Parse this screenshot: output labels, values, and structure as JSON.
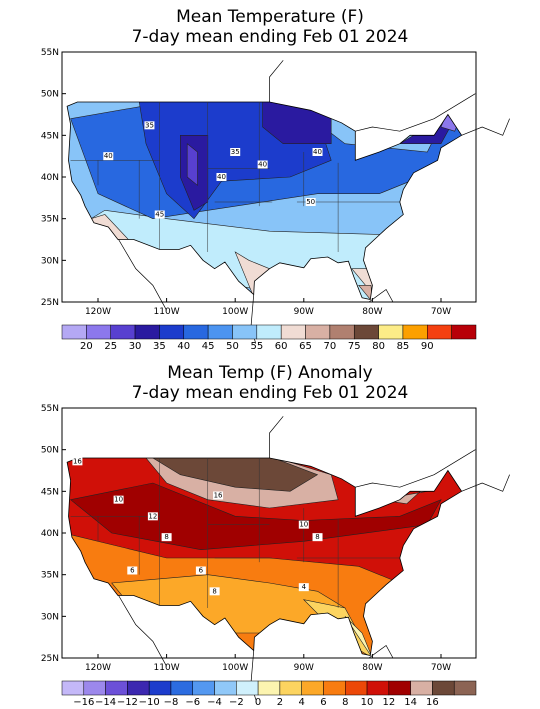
{
  "panels": [
    {
      "title": "Mean Temperature (F)",
      "subtitle": "7-day mean ending Feb 01 2024",
      "lat_labels": [
        "55N",
        "50N",
        "45N",
        "40N",
        "35N",
        "30N",
        "25N"
      ],
      "lon_labels": [
        "120W",
        "110W",
        "100W",
        "90W",
        "80W",
        "70W"
      ],
      "legend": {
        "labels": [
          "20",
          "25",
          "30",
          "35",
          "40",
          "45",
          "50",
          "55",
          "60",
          "65",
          "70",
          "75",
          "80",
          "85",
          "90"
        ],
        "colors": [
          "#b4a8f4",
          "#8c78ec",
          "#5840d0",
          "#2a1aa0",
          "#1c3ccc",
          "#2868e0",
          "#4c94f0",
          "#88c4f8",
          "#c0ecfc",
          "#f0dcd4",
          "#d8b0a4",
          "#b08070",
          "#6c4838",
          "#fcec88",
          "#fca000",
          "#f44010",
          "#b80008"
        ]
      },
      "contour_labels": [
        "35",
        "40",
        "35",
        "40",
        "40",
        "40",
        "45",
        "50"
      ]
    },
    {
      "title": "Mean Temp (F) Anomaly",
      "subtitle": "7-day mean ending Feb 01 2024",
      "lat_labels": [
        "55N",
        "50N",
        "45N",
        "40N",
        "35N",
        "30N",
        "25N"
      ],
      "lon_labels": [
        "120W",
        "110W",
        "100W",
        "90W",
        "80W",
        "70W"
      ],
      "legend": {
        "labels": [
          "−16",
          "−14",
          "−12",
          "−10",
          "−8",
          "−6",
          "−4",
          "−2",
          "0",
          "2",
          "4",
          "6",
          "8",
          "10",
          "12",
          "14",
          "16"
        ],
        "colors": [
          "#c4b8f8",
          "#9c88ec",
          "#6c50d8",
          "#3c28b0",
          "#1c3ccc",
          "#2c6ce0",
          "#5498f0",
          "#90c8f8",
          "#d0f0fc",
          "#fcf4b0",
          "#fcd460",
          "#fca828",
          "#f87c10",
          "#ec4808",
          "#d01008",
          "#a00000",
          "#d8b0a4",
          "#6c4838",
          "#8c6454"
        ]
      },
      "contour_labels": [
        "16",
        "10",
        "16",
        "12",
        "8",
        "10",
        "8",
        "6",
        "6",
        "4",
        "8"
      ]
    }
  ]
}
